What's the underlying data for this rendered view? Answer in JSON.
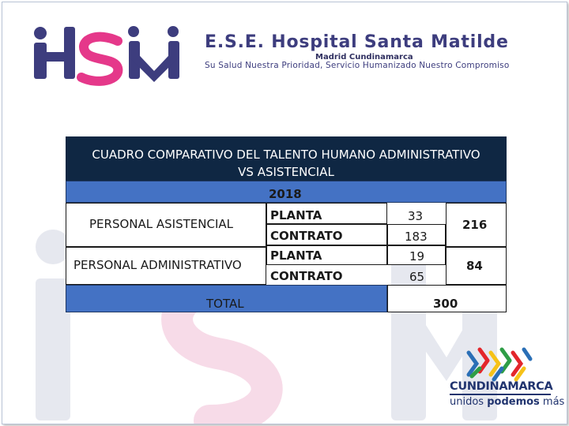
{
  "header": {
    "logo_text": "HSM",
    "org_name": "E.S.E. Hospital Santa Matilde",
    "location": "Madrid Cundinamarca",
    "slogan": "Su Salud Nuestra Prioridad, Servicio Humanizado Nuestro Compromiso"
  },
  "table": {
    "title_line1": "CUADRO COMPARATIVO DEL  TALENTO HUMANO ADMINISTRATIVO",
    "title_line2": "VS ASISTENCIAL",
    "year": "2018",
    "groups": [
      {
        "label": "PERSONAL ASISTENCIAL",
        "rows": [
          {
            "type": "PLANTA",
            "count": "33"
          },
          {
            "type": "CONTRATO",
            "count": "183"
          }
        ],
        "subtotal": "216"
      },
      {
        "label": "PERSONAL ADMINISTRATIVO",
        "rows": [
          {
            "type": "PLANTA",
            "count": "19"
          },
          {
            "type": "CONTRATO",
            "count": "65"
          }
        ],
        "subtotal": "84"
      }
    ],
    "total_label": "TOTAL",
    "total_value": "300"
  },
  "footer": {
    "brand": "CUNDINAMARCA",
    "motto_prefix": "unidos ",
    "motto_bold": "podemos",
    "motto_suffix": " más"
  },
  "colors": {
    "title_bg": "#0f2743",
    "accent_blue": "#4472c4",
    "brand_pink": "#e5388a",
    "brand_navy": "#3d3d7e"
  }
}
